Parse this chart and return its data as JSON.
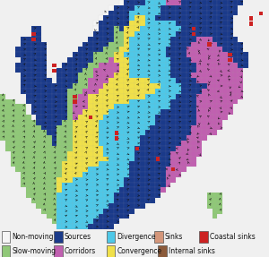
{
  "legend_items_row1": [
    {
      "label": "Non-moving",
      "facecolor": "#f5f5f5",
      "edgecolor": "#888888"
    },
    {
      "label": "Sources",
      "facecolor": "#1a3a8a",
      "edgecolor": "#888888"
    },
    {
      "label": "Divergence",
      "facecolor": "#4ec8e8",
      "edgecolor": "#888888"
    },
    {
      "label": "Sinks",
      "facecolor": "#d4967a",
      "edgecolor": "#888888"
    },
    {
      "label": "Coastal sinks",
      "facecolor": "#cc2222",
      "edgecolor": "#888888"
    }
  ],
  "legend_items_row2": [
    {
      "label": "Slow-moving",
      "facecolor": "#90c878",
      "edgecolor": "#888888"
    },
    {
      "label": "Corridors",
      "facecolor": "#c060b0",
      "edgecolor": "#888888"
    },
    {
      "label": "Convergence",
      "facecolor": "#f0e04a",
      "edgecolor": "#888888"
    },
    {
      "label": "Internal sinks",
      "facecolor": "#8b5a3a",
      "edgecolor": "#888888"
    }
  ],
  "bg_color": "#f0f0f0",
  "figsize": [
    3.0,
    2.87
  ],
  "dpi": 100,
  "legend_fontsize": 5.5,
  "map_colors": {
    "W": "#f5f5f5",
    "B": "#1a3a8a",
    "T": "#4ec8e8",
    "S": "#d4967a",
    "R": "#cc2222",
    "G": "#90c878",
    "P": "#c060b0",
    "Y": "#f0e04a",
    "N": "#8b5a3a",
    "M": "#dd44bb",
    "b": "#2255aa",
    "t": "#70d8f0",
    "g": "#b0d898",
    "p": "#d090cc",
    "y": "#f8f070",
    "K": "#222222",
    "D": "#3399cc",
    "Q": "#ee8844"
  }
}
